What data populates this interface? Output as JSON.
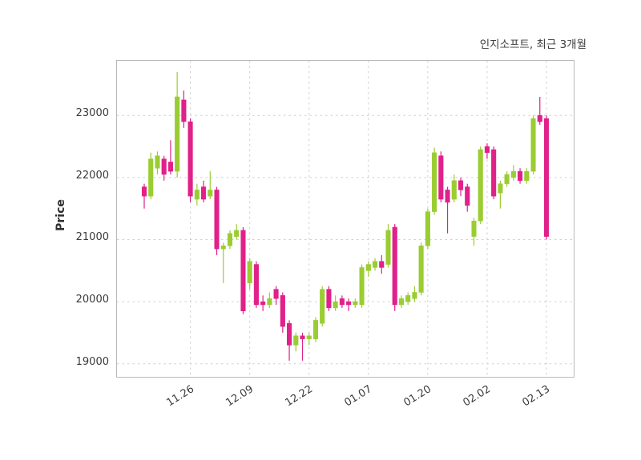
{
  "chart_data": {
    "type": "candlestick",
    "title": "인지소프트, 최근 3개월",
    "ylabel": "Price",
    "grid": "dashed",
    "legend": "none",
    "up_color": "#9acd32",
    "down_color": "#e0218a",
    "grid_color": "#cfcfcf",
    "text_color": "#3a3a3a",
    "ylim": [
      18790,
      23880
    ],
    "yticks": [
      19000,
      20000,
      21000,
      22000,
      23000
    ],
    "xticks": [
      {
        "label": "11.26",
        "index": 7
      },
      {
        "label": "12.09",
        "index": 16
      },
      {
        "label": "12.22",
        "index": 25
      },
      {
        "label": "01.07",
        "index": 34
      },
      {
        "label": "01.20",
        "index": 43
      },
      {
        "label": "02.02",
        "index": 52
      },
      {
        "label": "02.13",
        "index": 61
      }
    ],
    "candles_format": [
      "open",
      "high",
      "low",
      "close"
    ],
    "candles": [
      [
        21850,
        21900,
        21500,
        21700
      ],
      [
        21700,
        22400,
        21650,
        22300
      ],
      [
        22150,
        22420,
        22050,
        22350
      ],
      [
        22300,
        22350,
        21950,
        22050
      ],
      [
        22250,
        22600,
        22050,
        22100
      ],
      [
        22100,
        23700,
        22000,
        23300
      ],
      [
        23250,
        23400,
        22800,
        22900
      ],
      [
        22900,
        22950,
        21600,
        21700
      ],
      [
        21650,
        21900,
        21550,
        21800
      ],
      [
        21850,
        21950,
        21600,
        21650
      ],
      [
        21700,
        22100,
        21650,
        21800
      ],
      [
        21800,
        21850,
        20750,
        20850
      ],
      [
        20850,
        20950,
        20300,
        20900
      ],
      [
        20900,
        21150,
        20850,
        21100
      ],
      [
        21050,
        21250,
        21000,
        21150
      ],
      [
        21150,
        21200,
        19800,
        19850
      ],
      [
        20300,
        20700,
        20200,
        20650
      ],
      [
        20600,
        20650,
        19900,
        19950
      ],
      [
        20000,
        20100,
        19850,
        19950
      ],
      [
        19950,
        20150,
        19900,
        20050
      ],
      [
        20200,
        20250,
        19950,
        20050
      ],
      [
        20100,
        20150,
        19500,
        19600
      ],
      [
        19650,
        19700,
        19050,
        19300
      ],
      [
        19300,
        19500,
        19200,
        19450
      ],
      [
        19450,
        19500,
        19050,
        19400
      ],
      [
        19400,
        19500,
        19300,
        19450
      ],
      [
        19400,
        19750,
        19350,
        19700
      ],
      [
        19650,
        20250,
        19600,
        20200
      ],
      [
        20200,
        20250,
        19850,
        19900
      ],
      [
        19900,
        20100,
        19850,
        20000
      ],
      [
        20050,
        20100,
        19900,
        19950
      ],
      [
        20000,
        20050,
        19850,
        19950
      ],
      [
        19950,
        20050,
        19900,
        20000
      ],
      [
        19950,
        20600,
        19900,
        20550
      ],
      [
        20500,
        20650,
        20400,
        20600
      ],
      [
        20550,
        20700,
        20500,
        20650
      ],
      [
        20650,
        20750,
        20450,
        20550
      ],
      [
        20600,
        21250,
        20550,
        21150
      ],
      [
        21200,
        21250,
        19850,
        19950
      ],
      [
        19950,
        20100,
        19900,
        20050
      ],
      [
        20000,
        20150,
        19950,
        20100
      ],
      [
        20050,
        20250,
        20000,
        20150
      ],
      [
        20150,
        20950,
        20100,
        20900
      ],
      [
        20900,
        21500,
        20850,
        21450
      ],
      [
        21450,
        22480,
        21400,
        22400
      ],
      [
        22350,
        22420,
        21600,
        21650
      ],
      [
        21800,
        21850,
        21100,
        21600
      ],
      [
        21650,
        22050,
        21600,
        21950
      ],
      [
        21950,
        22000,
        21700,
        21800
      ],
      [
        21850,
        21900,
        21450,
        21550
      ],
      [
        21050,
        21350,
        20900,
        21300
      ],
      [
        21300,
        22500,
        21250,
        22450
      ],
      [
        22500,
        22550,
        22300,
        22400
      ],
      [
        22450,
        22500,
        21650,
        21700
      ],
      [
        21750,
        21950,
        21500,
        21900
      ],
      [
        21900,
        22100,
        21850,
        22050
      ],
      [
        22000,
        22200,
        21950,
        22100
      ],
      [
        22100,
        22150,
        21900,
        21950
      ],
      [
        21950,
        22150,
        21900,
        22100
      ],
      [
        22100,
        23000,
        22050,
        22950
      ],
      [
        23000,
        23300,
        22850,
        22900
      ],
      [
        22950,
        23000,
        21000,
        21050
      ]
    ]
  }
}
